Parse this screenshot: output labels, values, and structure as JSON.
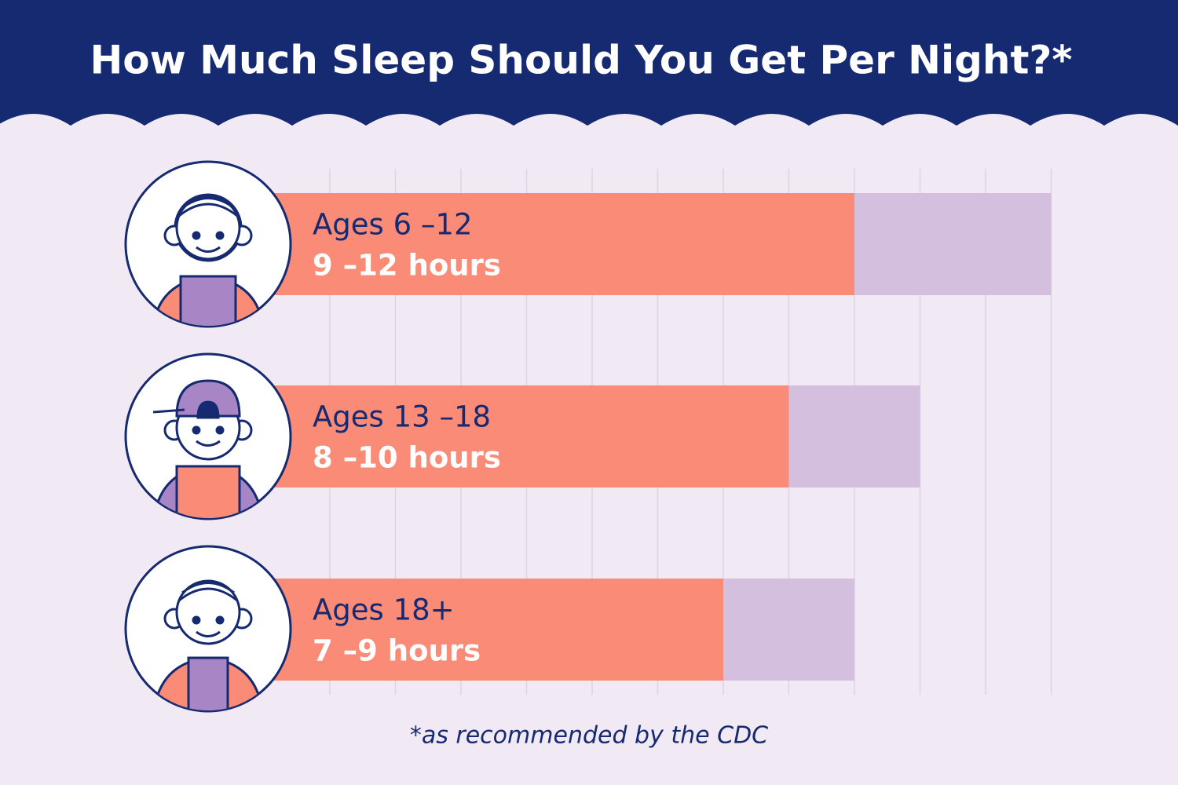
{
  "chart_data": {
    "type": "range_bar",
    "title": "How Much Sleep Should You Get Per Night?*",
    "categories": [
      "Ages 6 –12",
      "Ages 13 –18",
      "Ages 18+"
    ],
    "low": [
      9,
      8,
      7
    ],
    "high": [
      12,
      10,
      9
    ],
    "value_labels": [
      "9 –12 hours",
      "8 –10 hours",
      "7 –9 hours"
    ],
    "low_color": "#f98b77",
    "high_color": "#d4c0de",
    "xlim": [
      0,
      12
    ],
    "xticks": [
      1,
      2,
      3,
      4,
      5,
      6,
      7,
      8,
      9,
      10,
      11,
      12
    ],
    "grid": true,
    "footnote": "*as recommended by the CDC"
  }
}
